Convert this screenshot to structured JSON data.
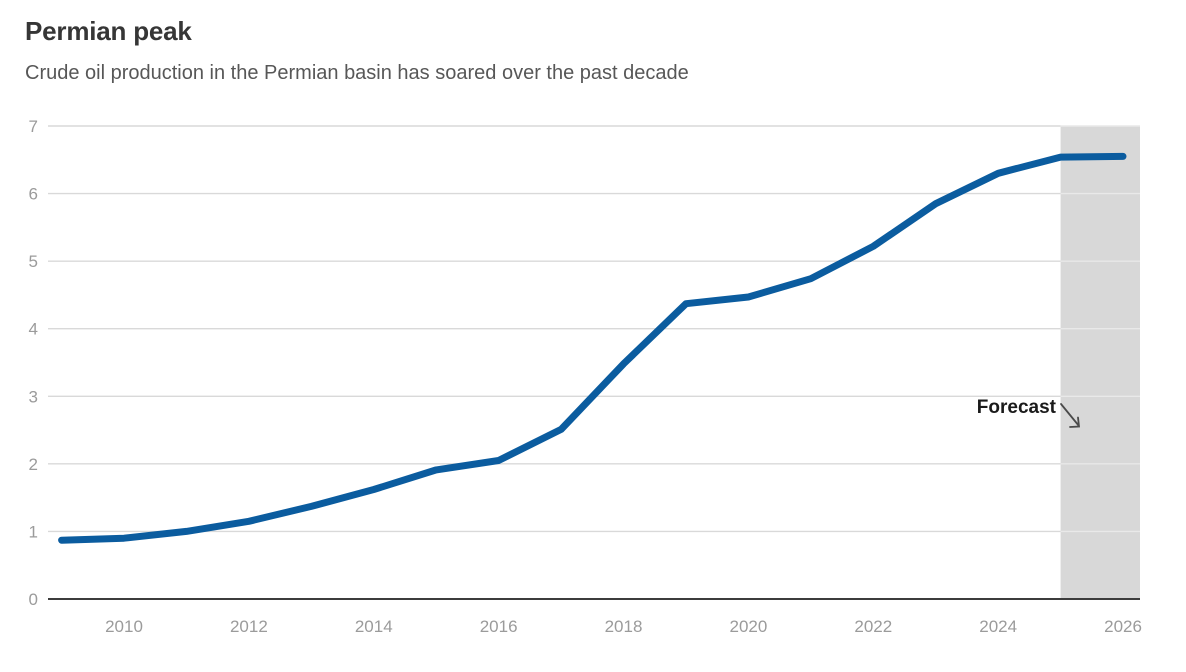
{
  "header": {
    "title": "Permian peak",
    "subtitle": "Crude oil production in the Permian basin has soared over the past decade"
  },
  "chart_data": {
    "type": "line",
    "title": "Permian peak",
    "subtitle": "Crude oil production in the Permian basin has soared over the past decade",
    "x": [
      2009,
      2010,
      2011,
      2012,
      2013,
      2014,
      2015,
      2016,
      2017,
      2018,
      2019,
      2020,
      2021,
      2022,
      2023,
      2024,
      2025,
      2026
    ],
    "values": [
      0.87,
      0.9,
      1.0,
      1.15,
      1.37,
      1.62,
      1.91,
      2.05,
      2.51,
      3.48,
      4.37,
      4.47,
      4.74,
      5.22,
      5.85,
      6.3,
      6.54,
      6.55
    ],
    "xticks": [
      2010,
      2012,
      2014,
      2016,
      2018,
      2020,
      2022,
      2024,
      2026
    ],
    "yticks": [
      0,
      1,
      2,
      3,
      4,
      5,
      6,
      7
    ],
    "ylim": [
      0,
      7
    ],
    "xlabel": "",
    "ylabel": "",
    "grid": true,
    "legend": "none",
    "forecast_start": 2025,
    "forecast_label": "Forecast",
    "colors": {
      "line": "#0b5c9f",
      "forecast_band": "#d8d8d8",
      "forecast_band_gridline": "#e9e9e9",
      "gridline": "#d9d9d9",
      "axis_baseline": "#3c3c3c",
      "tick_text": "#9b9b9b",
      "title_text": "#363636",
      "subtitle_text": "#575757",
      "forecast_text": "#1a1a1a",
      "arrow": "#4a4a4a"
    }
  }
}
